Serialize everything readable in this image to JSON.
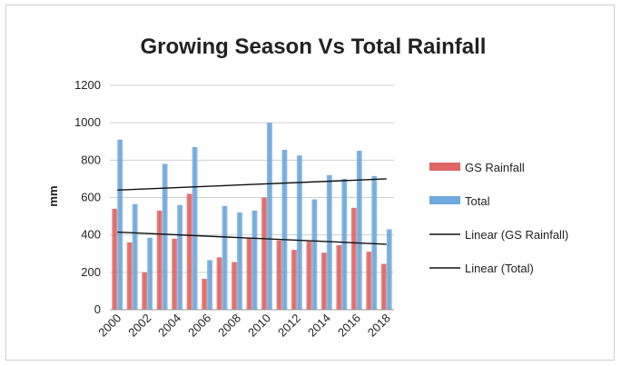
{
  "chart_data": {
    "type": "bar",
    "title": "Growing Season Vs Total Rainfall",
    "xlabel": "",
    "ylabel": "mm",
    "ylim": [
      0,
      1200
    ],
    "yticks": [
      "0",
      "200",
      "400",
      "600",
      "800",
      "1000",
      "1200"
    ],
    "categories": [
      "2000",
      "2001",
      "2002",
      "2003",
      "2004",
      "2005",
      "2006",
      "2007",
      "2008",
      "2009",
      "2010",
      "2011",
      "2012",
      "2013",
      "2014",
      "2015",
      "2016",
      "2017",
      "2018"
    ],
    "xtick_labels": [
      "2000",
      "2002",
      "2004",
      "2006",
      "2008",
      "2010",
      "2012",
      "2014",
      "2016",
      "2018"
    ],
    "series": [
      {
        "name": "GS Rainfall",
        "color": "#e06666",
        "values": [
          540,
          360,
          200,
          530,
          380,
          620,
          165,
          280,
          255,
          385,
          600,
          370,
          320,
          365,
          305,
          345,
          545,
          310,
          245
        ]
      },
      {
        "name": "Total",
        "color": "#6fa8dc",
        "values": [
          910,
          565,
          385,
          780,
          560,
          870,
          265,
          555,
          520,
          530,
          1000,
          855,
          825,
          590,
          720,
          700,
          850,
          715,
          430
        ]
      }
    ],
    "trendlines": [
      {
        "name": "Linear (GS Rainfall)",
        "color": "#111111",
        "start": 415,
        "end": 350
      },
      {
        "name": "Linear (Total)",
        "color": "#111111",
        "start": 640,
        "end": 700
      }
    ],
    "grid": true,
    "legend_position": "right"
  }
}
